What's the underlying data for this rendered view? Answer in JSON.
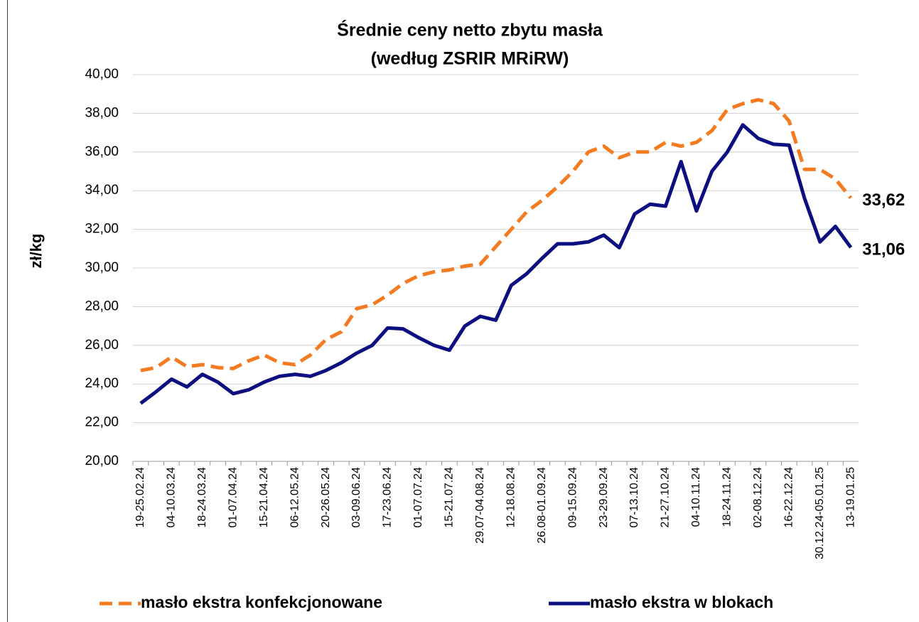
{
  "chart_data": {
    "type": "line",
    "title": "Średnie ceny netto zbytu masła",
    "subtitle": "(według ZSRIR MRiRW)",
    "y_label": "zł/kg",
    "categories": [
      "19-25.02.24",
      null,
      "04-10.03.24",
      null,
      "18-24.03.24",
      null,
      "01-07.04.24",
      null,
      "15-21.04.24",
      null,
      "06-12.05.24",
      null,
      "20-26.05.24",
      null,
      "03-09.06.24",
      null,
      "17-23.06.24",
      null,
      "01-07.07.24",
      null,
      "15-21.07.24",
      null,
      "29.07-04.08.24",
      null,
      "12-18.08.24",
      null,
      "26.08-01.09.24",
      null,
      "09-15.09.24",
      null,
      "23-29.09.24",
      null,
      "07-13.10.24",
      null,
      "21-27.10.24",
      null,
      "04-10.11.24",
      null,
      "18-24.11.24",
      null,
      "02-08.12.24",
      null,
      "16-22.12.24",
      null,
      "30.12.24-05.01.25",
      null,
      "13-19.01.25"
    ],
    "series": [
      {
        "name": "masło ekstra konfekcjonowane",
        "color": "#f47b20",
        "dashed": true,
        "values": [
          24.7,
          24.85,
          25.4,
          24.9,
          25.0,
          24.85,
          24.8,
          25.2,
          25.5,
          25.1,
          25.0,
          25.5,
          26.3,
          26.7,
          27.9,
          28.1,
          28.6,
          29.2,
          29.6,
          29.8,
          29.9,
          30.1,
          30.2,
          31.1,
          32.0,
          32.9,
          33.5,
          34.2,
          35.0,
          36.0,
          36.3,
          35.7,
          36.0,
          36.0,
          36.5,
          36.3,
          36.5,
          37.1,
          38.2,
          38.5,
          38.7,
          38.5,
          37.6,
          35.1,
          35.1,
          34.6,
          33.62
        ],
        "value_labels": [
          null,
          null,
          null,
          null,
          null,
          null,
          null,
          null,
          null,
          null,
          null,
          null,
          null,
          null,
          null,
          null,
          null,
          null,
          null,
          null,
          null,
          null,
          null,
          null,
          null,
          null,
          null,
          null,
          null,
          null,
          null,
          null,
          null,
          null,
          null,
          null,
          null,
          null,
          null,
          null,
          null,
          null,
          null,
          null,
          null,
          null,
          "33,62"
        ],
        "label_color": "#e0791f"
      },
      {
        "name": "masło ekstra w blokach",
        "color": "#0b0f80",
        "dashed": false,
        "values": [
          23.0,
          23.6,
          24.25,
          23.85,
          24.5,
          24.1,
          23.5,
          23.7,
          24.1,
          24.4,
          24.5,
          24.4,
          24.7,
          25.1,
          25.6,
          26.0,
          26.9,
          26.85,
          26.4,
          26.0,
          25.75,
          27.0,
          27.5,
          27.3,
          29.1,
          29.7,
          30.5,
          31.25,
          31.25,
          31.35,
          31.7,
          31.05,
          32.8,
          33.3,
          33.2,
          35.5,
          32.95,
          35.0,
          36.0,
          37.4,
          36.7,
          36.4,
          36.35,
          33.6,
          31.35,
          32.15,
          31.06
        ],
        "value_labels": [
          null,
          null,
          null,
          null,
          null,
          null,
          null,
          null,
          null,
          null,
          null,
          null,
          null,
          null,
          null,
          null,
          null,
          null,
          null,
          null,
          null,
          null,
          null,
          null,
          null,
          null,
          null,
          null,
          null,
          null,
          null,
          null,
          null,
          null,
          null,
          null,
          null,
          null,
          null,
          null,
          null,
          null,
          null,
          null,
          null,
          null,
          "31,06"
        ],
        "label_color": "#0b0f80"
      }
    ],
    "ylim": [
      20,
      40
    ],
    "yticks": [
      {
        "value": 20,
        "label": "20,00"
      },
      {
        "value": 22,
        "label": "22,00"
      },
      {
        "value": 24,
        "label": "24,00"
      },
      {
        "value": 26,
        "label": "26,00"
      },
      {
        "value": 28,
        "label": "28,00"
      },
      {
        "value": 30,
        "label": "30,00"
      },
      {
        "value": 32,
        "label": "32,00"
      },
      {
        "value": 34,
        "label": "34,00"
      },
      {
        "value": 36,
        "label": "36,00"
      },
      {
        "value": 38,
        "label": "38,00"
      },
      {
        "value": 40,
        "label": "40,00"
      }
    ],
    "grid": true,
    "legend": "bottom"
  }
}
